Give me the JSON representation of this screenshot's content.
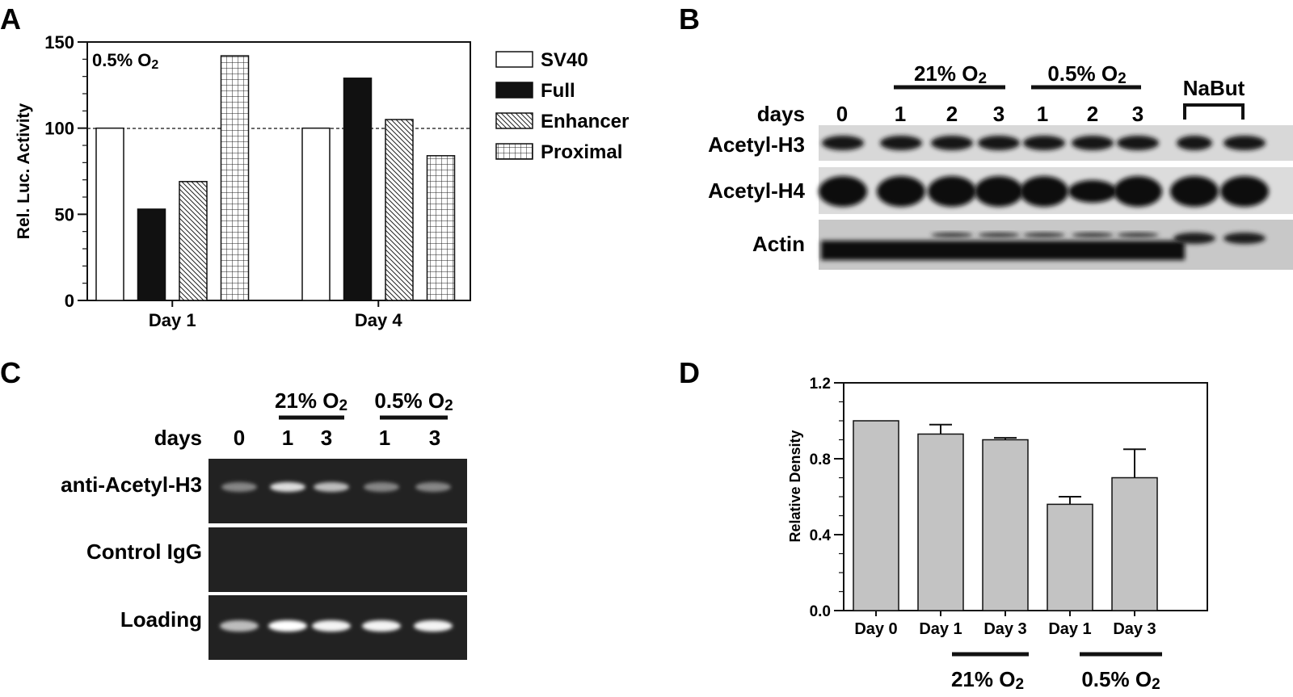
{
  "panel_a": {
    "letter": "A",
    "condition": "0.5% O",
    "condition_sub": "2",
    "legend": [
      {
        "label": "SV40",
        "pattern": "white"
      },
      {
        "label": "Full",
        "pattern": "black"
      },
      {
        "label": "Enhancer",
        "pattern": "hatch"
      },
      {
        "label": "Proximal",
        "pattern": "grid"
      }
    ]
  },
  "panel_b": {
    "letter": "B",
    "group1": "21% O",
    "group1_sub": "2",
    "group2": "0.5% O",
    "group2_sub": "2",
    "group3": "NaBut",
    "days_label": "days",
    "lane_labels": [
      "0",
      "1",
      "2",
      "3",
      "1",
      "2",
      "3"
    ],
    "row_labels": [
      "Acetyl-H3",
      "Acetyl-H4",
      "Actin"
    ]
  },
  "panel_c": {
    "letter": "C",
    "group1": "21% O",
    "group1_sub": "2",
    "group2": "0.5% O",
    "group2_sub": "2",
    "days_label": "days",
    "lane_labels": [
      "0",
      "1",
      "3",
      "1",
      "3"
    ],
    "row_labels": [
      "anti-Acetyl-H3",
      "Control IgG",
      "Loading"
    ]
  },
  "panel_d": {
    "letter": "D",
    "group1": "21% O",
    "group1_sub": "2",
    "group2": "0.5% O",
    "group2_sub": "2"
  },
  "chart_data": [
    {
      "type": "bar",
      "panel": "A",
      "categories": [
        "Day 1",
        "Day 4"
      ],
      "series": [
        {
          "name": "SV40",
          "values": [
            100,
            100
          ]
        },
        {
          "name": "Full",
          "values": [
            53,
            129
          ]
        },
        {
          "name": "Enhancer",
          "values": [
            69,
            105
          ]
        },
        {
          "name": "Proximal",
          "values": [
            142,
            84
          ]
        }
      ],
      "ylabel": "Rel. Luc. Activity",
      "ylim": [
        0,
        150
      ],
      "yticks": [
        0,
        50,
        100,
        150
      ],
      "reference_line": 100,
      "grid": false,
      "legend": "right"
    },
    {
      "type": "bar",
      "panel": "D",
      "categories": [
        "Day 0",
        "Day 1",
        "Day 3",
        "Day 1",
        "Day 3"
      ],
      "values": [
        1.0,
        0.93,
        0.9,
        0.56,
        0.7
      ],
      "errors": [
        0,
        0.05,
        0.01,
        0.04,
        0.15
      ],
      "ylabel": "Relative Density",
      "ylim": [
        0,
        1.2
      ],
      "yticks": [
        "0.0",
        "0.4",
        "0.8",
        "1.2"
      ],
      "grid": false
    }
  ]
}
